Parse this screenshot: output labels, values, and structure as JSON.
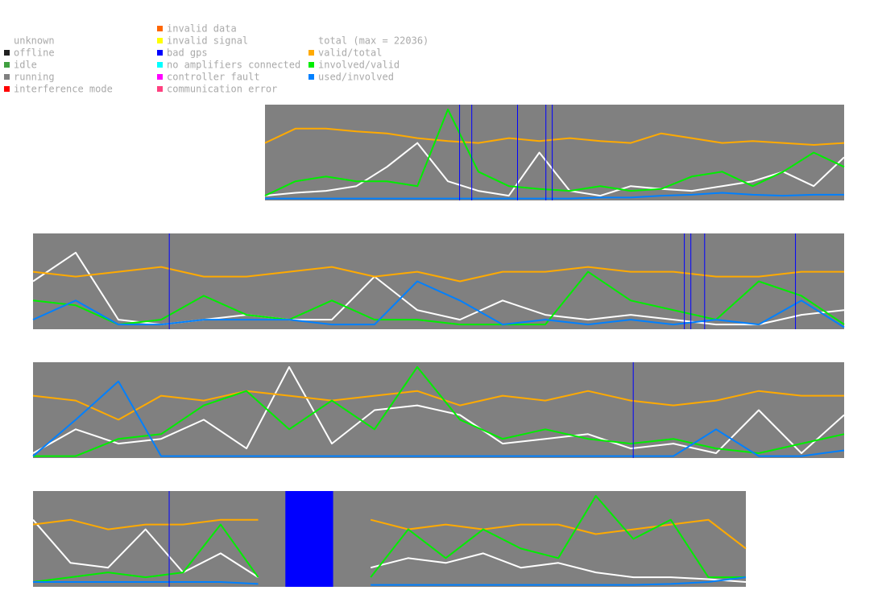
{
  "legend": {
    "status": [
      {
        "label": "unknown"
      },
      {
        "label": "offline",
        "color": "#202020"
      },
      {
        "label": "idle",
        "color": "#40a040"
      },
      {
        "label": "running",
        "color": "#808080"
      },
      {
        "label": "interference mode",
        "color": "#ff0000"
      }
    ],
    "errors": [
      {
        "label": "invalid data",
        "color": "#ff6600"
      },
      {
        "label": "invalid signal",
        "color": "#ffff00"
      },
      {
        "label": "bad gps",
        "color": "#0000ff"
      },
      {
        "label": "no amplifiers connected",
        "color": "#00ffff"
      },
      {
        "label": "controller fault",
        "color": "#ff00ff"
      },
      {
        "label": "communication error",
        "color": "#ff4080"
      }
    ],
    "ratios": [
      {
        "label": "total (max = 22036)",
        "color": "#ffffff"
      },
      {
        "label": "valid/total",
        "color": "#ffaa00"
      },
      {
        "label": "involved/valid",
        "color": "#00ee00"
      },
      {
        "label": "used/involved",
        "color": "#0080ff"
      }
    ]
  },
  "chart_data": [
    {
      "type": "line",
      "ylim": [
        0,
        1
      ],
      "background": "#808080",
      "event_color": "#0000ff",
      "bad_gps": [
        0.336,
        0.357,
        0.436,
        0.485,
        0.496
      ],
      "series": [
        {
          "color": "#ffffff",
          "values": [
            0.05,
            0.08,
            0.1,
            0.15,
            0.35,
            0.6,
            0.2,
            0.1,
            0.05,
            0.5,
            0.1,
            0.05,
            0.15,
            0.12,
            0.1,
            0.15,
            0.2,
            0.3,
            0.15,
            0.45
          ]
        },
        {
          "color": "#ffaa00",
          "values": [
            0.6,
            0.75,
            0.75,
            0.72,
            0.7,
            0.65,
            0.62,
            0.6,
            0.65,
            0.62,
            0.65,
            0.62,
            0.6,
            0.7,
            0.65,
            0.6,
            0.62,
            0.6,
            0.58,
            0.6
          ]
        },
        {
          "color": "#00ee00",
          "values": [
            0.05,
            0.2,
            0.25,
            0.2,
            0.2,
            0.15,
            0.95,
            0.3,
            0.15,
            0.12,
            0.1,
            0.15,
            0.1,
            0.12,
            0.25,
            0.3,
            0.15,
            0.3,
            0.5,
            0.35
          ]
        },
        {
          "color": "#0080ff",
          "values": [
            0.02,
            0.02,
            0.02,
            0.02,
            0.02,
            0.02,
            0.02,
            0.02,
            0.02,
            0.02,
            0.02,
            0.03,
            0.03,
            0.05,
            0.06,
            0.08,
            0.06,
            0.05,
            0.06,
            0.06
          ]
        }
      ]
    },
    {
      "type": "line",
      "ylim": [
        0,
        1
      ],
      "background": "#808080",
      "event_color": "#0000ff",
      "bad_gps": [
        0.168,
        0.803,
        0.811,
        0.828,
        0.94
      ],
      "series": [
        {
          "color": "#ffffff",
          "values": [
            0.5,
            0.8,
            0.1,
            0.05,
            0.1,
            0.15,
            0.1,
            0.1,
            0.55,
            0.2,
            0.1,
            0.3,
            0.15,
            0.1,
            0.15,
            0.1,
            0.05,
            0.05,
            0.15,
            0.2
          ]
        },
        {
          "color": "#ffaa00",
          "values": [
            0.6,
            0.55,
            0.6,
            0.65,
            0.55,
            0.55,
            0.6,
            0.65,
            0.55,
            0.6,
            0.5,
            0.6,
            0.6,
            0.65,
            0.6,
            0.6,
            0.55,
            0.55,
            0.6,
            0.6
          ]
        },
        {
          "color": "#00ee00",
          "values": [
            0.3,
            0.25,
            0.05,
            0.1,
            0.35,
            0.15,
            0.1,
            0.3,
            0.1,
            0.1,
            0.05,
            0.05,
            0.05,
            0.6,
            0.3,
            0.2,
            0.1,
            0.5,
            0.35,
            0.05
          ]
        },
        {
          "color": "#0080ff",
          "values": [
            0.1,
            0.3,
            0.05,
            0.05,
            0.1,
            0.1,
            0.1,
            0.05,
            0.05,
            0.5,
            0.3,
            0.05,
            0.1,
            0.05,
            0.1,
            0.05,
            0.1,
            0.05,
            0.3,
            0.02
          ]
        }
      ]
    },
    {
      "type": "line",
      "ylim": [
        0,
        1
      ],
      "background": "#808080",
      "event_color": "#0000ff",
      "bad_gps": [
        0.74
      ],
      "series": [
        {
          "color": "#ffffff",
          "values": [
            0.05,
            0.3,
            0.15,
            0.2,
            0.4,
            0.1,
            0.95,
            0.15,
            0.5,
            0.55,
            0.45,
            0.15,
            0.2,
            0.25,
            0.1,
            0.15,
            0.05,
            0.5,
            0.05,
            0.45
          ]
        },
        {
          "color": "#ffaa00",
          "values": [
            0.65,
            0.6,
            0.4,
            0.65,
            0.6,
            0.7,
            0.65,
            0.6,
            0.65,
            0.7,
            0.55,
            0.65,
            0.6,
            0.7,
            0.6,
            0.55,
            0.6,
            0.7,
            0.65,
            0.65
          ]
        },
        {
          "color": "#00ee00",
          "values": [
            0.02,
            0.02,
            0.2,
            0.25,
            0.55,
            0.7,
            0.3,
            0.6,
            0.3,
            0.95,
            0.4,
            0.2,
            0.3,
            0.2,
            0.15,
            0.2,
            0.1,
            0.05,
            0.15,
            0.25
          ]
        },
        {
          "color": "#0080ff",
          "values": [
            0.02,
            0.4,
            0.8,
            0.02,
            0.02,
            0.02,
            0.02,
            0.02,
            0.02,
            0.02,
            0.02,
            0.02,
            0.02,
            0.02,
            0.02,
            0.02,
            0.3,
            0.02,
            0.02,
            0.08
          ]
        }
      ]
    },
    {
      "type": "line",
      "ylim": [
        0,
        1
      ],
      "background": "#808080",
      "event_color": "#0000ff",
      "bad_gps": [
        0.191
      ],
      "bad_gps_span": [
        0.354,
        0.421
      ],
      "series": [
        {
          "color": "#ffffff",
          "values": [
            0.7,
            0.25,
            0.2,
            0.6,
            0.15,
            0.35,
            0.1,
            null,
            null,
            0.2,
            0.3,
            0.25,
            0.35,
            0.2,
            0.25,
            0.15,
            0.1,
            0.1,
            0.08,
            0.05
          ]
        },
        {
          "color": "#ffaa00",
          "values": [
            0.65,
            0.7,
            0.6,
            0.65,
            0.65,
            0.7,
            0.7,
            null,
            null,
            0.7,
            0.6,
            0.65,
            0.6,
            0.65,
            0.65,
            0.55,
            0.6,
            0.65,
            0.7,
            0.4
          ]
        },
        {
          "color": "#00ee00",
          "values": [
            0.05,
            0.1,
            0.15,
            0.1,
            0.15,
            0.65,
            0.1,
            null,
            null,
            0.1,
            0.6,
            0.3,
            0.6,
            0.4,
            0.3,
            0.95,
            0.5,
            0.7,
            0.1,
            0.1
          ]
        },
        {
          "color": "#0080ff",
          "values": [
            0.05,
            0.05,
            0.05,
            0.05,
            0.05,
            0.05,
            0.03,
            null,
            null,
            0.02,
            0.02,
            0.02,
            0.02,
            0.02,
            0.02,
            0.02,
            0.02,
            0.03,
            0.05,
            0.1
          ]
        }
      ]
    }
  ]
}
